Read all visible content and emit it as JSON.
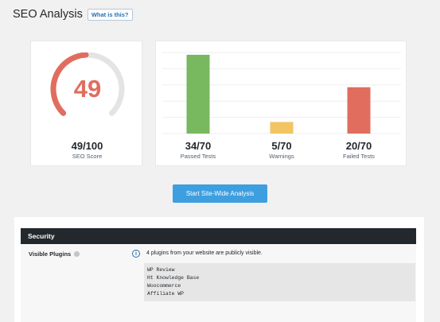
{
  "header": {
    "title": "SEO Analysis",
    "what_is_this": "What is this?"
  },
  "score": {
    "value": "49",
    "summary": "49/100",
    "label": "SEO Score",
    "fraction": 0.49
  },
  "stats": [
    {
      "value": "34/70",
      "label": "Passed Tests"
    },
    {
      "value": "5/70",
      "label": "Warnings"
    },
    {
      "value": "20/70",
      "label": "Failed Tests"
    }
  ],
  "chart_data": {
    "type": "bar",
    "categories": [
      "Passed Tests",
      "Warnings",
      "Failed Tests"
    ],
    "values": [
      34,
      5,
      20
    ],
    "colors": [
      "#78b85e",
      "#f2c462",
      "#e06d5e"
    ],
    "ylim": [
      0,
      35
    ],
    "grid": true
  },
  "actions": {
    "start_button": "Start Site-Wide Analysis"
  },
  "security": {
    "title": "Security",
    "visible_plugins_label": "Visible Plugins",
    "message": "4 plugins from your website are publicly visible.",
    "plugins": [
      "WP Review",
      "Ht Knowledge Base",
      "Woocommerce",
      "Affiliate WP"
    ]
  },
  "colors": {
    "accent": "#3d9fdf",
    "gauge": "#e06d5e",
    "gauge_track": "#e4e4e4",
    "section_bar": "#23282d"
  },
  "icons": {
    "help": "help-circle-icon",
    "info": "info-icon"
  }
}
